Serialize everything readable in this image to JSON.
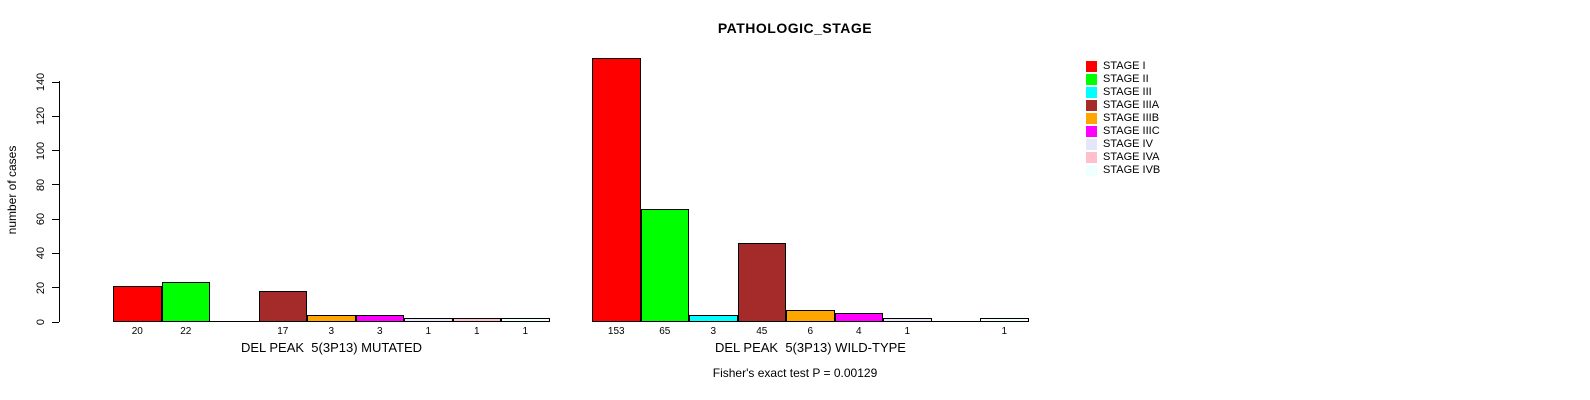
{
  "title": "PATHOLOGIC_STAGE",
  "y_axis": {
    "label": "number of cases",
    "ticks": [
      0,
      20,
      40,
      60,
      80,
      100,
      120,
      140
    ]
  },
  "footer": {
    "annotation": "Fisher's exact test P = 0.00129"
  },
  "chart_data": {
    "type": "bar",
    "title": "PATHOLOGIC_STAGE",
    "ylabel": "number of cases",
    "ylim": [
      0,
      140
    ],
    "yticks": [
      0,
      20,
      40,
      60,
      80,
      100,
      120,
      140
    ],
    "grid": false,
    "legend_position": "right",
    "categories": [
      "STAGE I",
      "STAGE II",
      "STAGE III",
      "STAGE IIIA",
      "STAGE IIIB",
      "STAGE IIIC",
      "STAGE IV",
      "STAGE IVA",
      "STAGE IVB"
    ],
    "colors": [
      "#FF0000",
      "#00FF00",
      "#00FFFF",
      "#A52A2A",
      "#FFA500",
      "#FF00FF",
      "#E6E6FA",
      "#FFC0CB",
      "#F0FFFF"
    ],
    "groups": [
      {
        "label": "DEL PEAK  5(3P13) MUTATED",
        "values": [
          20,
          22,
          0,
          17,
          3,
          3,
          1,
          1,
          1
        ]
      },
      {
        "label": "DEL PEAK  5(3P13) WILD-TYPE",
        "values": [
          153,
          65,
          3,
          45,
          6,
          4,
          1,
          0,
          1
        ]
      }
    ],
    "annotation": "Fisher's exact test P = 0.00129"
  }
}
